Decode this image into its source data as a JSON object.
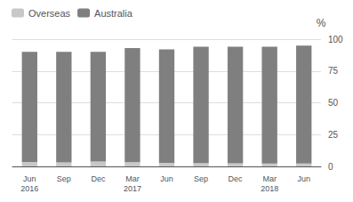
{
  "chart_data": {
    "type": "bar",
    "stacked": true,
    "categories": [
      "Jun\n2016",
      "Sep",
      "Dec",
      "Mar\n2017",
      "Jun",
      "Sep",
      "Dec",
      "Mar\n2018",
      "Jun"
    ],
    "series": [
      {
        "name": "Overseas",
        "color": "#c8c8c8",
        "values": [
          3.5,
          3.2,
          3.8,
          3.3,
          2.8,
          2.7,
          2.5,
          2.3,
          2.2
        ]
      },
      {
        "name": "Australia",
        "color": "#7f7f7f",
        "values": [
          86.5,
          86.8,
          86.2,
          89.7,
          89.2,
          91.3,
          91.5,
          91.7,
          92.8
        ]
      }
    ],
    "ylabel": "%",
    "ylim": [
      0,
      100
    ],
    "yticks": [
      0,
      25,
      50,
      75,
      100
    ],
    "grid": true,
    "legend": "upper left"
  }
}
